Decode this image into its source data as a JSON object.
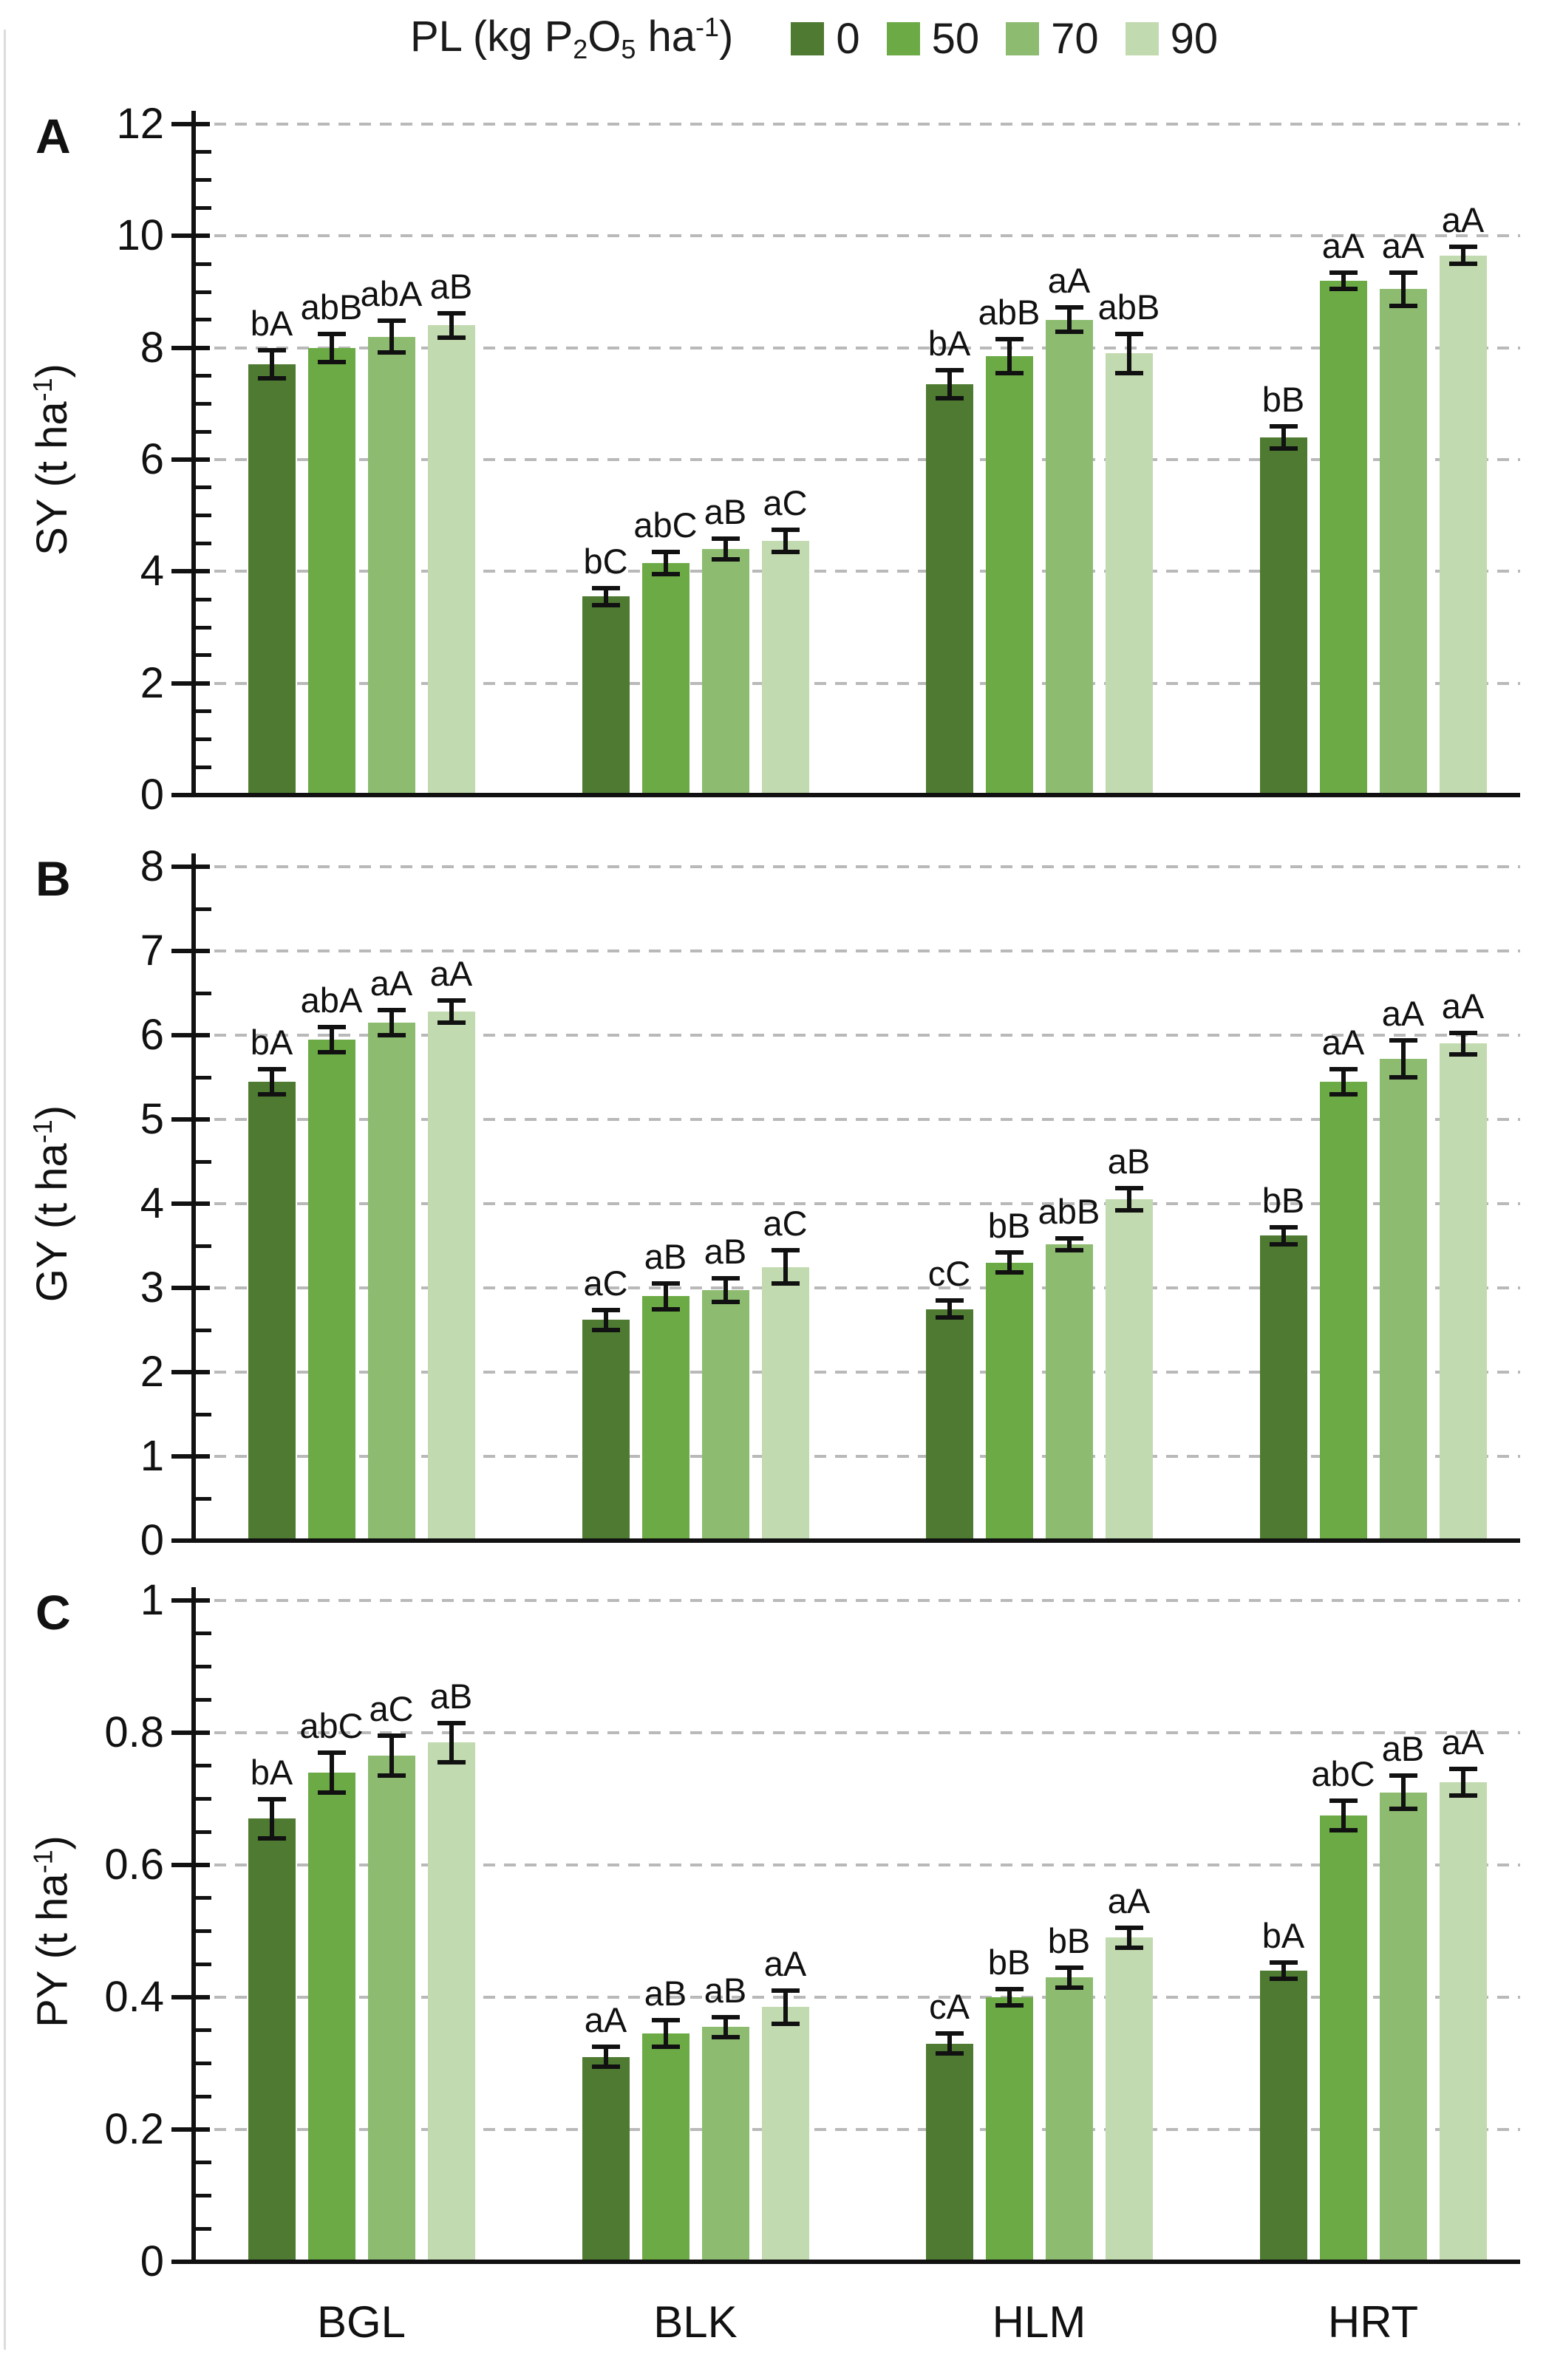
{
  "figure": {
    "legend": {
      "title_text": "PL (kg P2O5 ha-1)",
      "title_segments": [
        {
          "t": "PL (kg P"
        },
        {
          "sub": "2"
        },
        {
          "t": "O"
        },
        {
          "sub": "5"
        },
        {
          "t": " ha"
        },
        {
          "sup": "-1"
        },
        {
          "t": ")"
        }
      ],
      "position": "top",
      "series": [
        {
          "label": "0",
          "color": "#4e7b31"
        },
        {
          "label": "50",
          "color": "#6caa45"
        },
        {
          "label": "70",
          "color": "#8dbb70"
        },
        {
          "label": "90",
          "color": "#c2daaf"
        }
      ]
    },
    "categories": [
      "BGL",
      "BLK",
      "HLM",
      "HRT"
    ],
    "axis_color": "#111111",
    "gridline_color": "#b9b9b9",
    "grid": "horizontal-dashed"
  },
  "chart_data": [
    {
      "type": "bar",
      "panel_label": "A",
      "ylabel": "SY (t ha-1)",
      "ylabel_segments": [
        {
          "t": "SY (t ha"
        },
        {
          "sup": "-1"
        },
        {
          "t": ")"
        }
      ],
      "xlabel": "",
      "ylim": [
        0,
        12
      ],
      "ytick_step": 2,
      "yminor_step": 0.5,
      "yticks": [
        0,
        2,
        4,
        6,
        8,
        10,
        12
      ],
      "ytick_labels": [
        "0",
        "2",
        "4",
        "6",
        "8",
        "10",
        "12"
      ],
      "categories": [
        "BGL",
        "BLK",
        "HLM",
        "HRT"
      ],
      "series": [
        {
          "name": "0",
          "values": [
            7.7,
            3.55,
            7.35,
            6.4
          ],
          "errors": [
            0.25,
            0.15,
            0.25,
            0.2
          ],
          "sig_labels": [
            "bA",
            "bC",
            "bA",
            "bB"
          ]
        },
        {
          "name": "50",
          "values": [
            8.0,
            4.15,
            7.85,
            9.2
          ],
          "errors": [
            0.25,
            0.2,
            0.3,
            0.15
          ],
          "sig_labels": [
            "abB",
            "abC",
            "abB",
            "aA"
          ]
        },
        {
          "name": "70",
          "values": [
            8.2,
            4.4,
            8.5,
            9.05
          ],
          "errors": [
            0.28,
            0.18,
            0.22,
            0.3
          ],
          "sig_labels": [
            "abA",
            "aB",
            "aA",
            "aA"
          ]
        },
        {
          "name": "90",
          "values": [
            8.4,
            4.55,
            7.9,
            9.65
          ],
          "errors": [
            0.22,
            0.2,
            0.35,
            0.15
          ],
          "sig_labels": [
            "aB",
            "aC",
            "abB",
            "aA"
          ]
        }
      ]
    },
    {
      "type": "bar",
      "panel_label": "B",
      "ylabel": "GY (t ha-1)",
      "ylabel_segments": [
        {
          "t": "GY (t ha"
        },
        {
          "sup": "-1"
        },
        {
          "t": ")"
        }
      ],
      "xlabel": "",
      "ylim": [
        0,
        8
      ],
      "ytick_step": 1,
      "yminor_step": 0.5,
      "yticks": [
        0,
        1,
        2,
        3,
        4,
        5,
        6,
        7,
        8
      ],
      "ytick_labels": [
        "0",
        "1",
        "2",
        "3",
        "4",
        "5",
        "6",
        "7",
        "8"
      ],
      "categories": [
        "BGL",
        "BLK",
        "HLM",
        "HRT"
      ],
      "series": [
        {
          "name": "0",
          "values": [
            5.45,
            2.62,
            2.75,
            3.62
          ],
          "errors": [
            0.15,
            0.12,
            0.1,
            0.1
          ],
          "sig_labels": [
            "bA",
            "aC",
            "cC",
            "bB"
          ]
        },
        {
          "name": "50",
          "values": [
            5.95,
            2.9,
            3.3,
            5.45
          ],
          "errors": [
            0.15,
            0.15,
            0.12,
            0.15
          ],
          "sig_labels": [
            "abA",
            "aB",
            "bB",
            "aA"
          ]
        },
        {
          "name": "70",
          "values": [
            6.15,
            2.97,
            3.52,
            5.72
          ],
          "errors": [
            0.15,
            0.14,
            0.07,
            0.22
          ],
          "sig_labels": [
            "aA",
            "aB",
            "abB",
            "aA"
          ]
        },
        {
          "name": "90",
          "values": [
            6.28,
            3.25,
            4.05,
            5.9
          ],
          "errors": [
            0.13,
            0.2,
            0.13,
            0.13
          ],
          "sig_labels": [
            "aA",
            "aC",
            "aB",
            "aA"
          ]
        }
      ]
    },
    {
      "type": "bar",
      "panel_label": "C",
      "ylabel": "PY (t ha-1)",
      "ylabel_segments": [
        {
          "t": "PY (t ha"
        },
        {
          "sup": "-1"
        },
        {
          "t": ")"
        }
      ],
      "xlabel": "",
      "ylim": [
        0,
        1
      ],
      "ytick_step": 0.2,
      "yminor_step": 0.05,
      "yticks": [
        0,
        0.2,
        0.4,
        0.6,
        0.8,
        1
      ],
      "ytick_labels": [
        "0",
        "0.2",
        "0.4",
        "0.6",
        "0.8",
        "1"
      ],
      "categories": [
        "BGL",
        "BLK",
        "HLM",
        "HRT"
      ],
      "series": [
        {
          "name": "0",
          "values": [
            0.67,
            0.31,
            0.33,
            0.44
          ],
          "errors": [
            0.03,
            0.015,
            0.015,
            0.012
          ],
          "sig_labels": [
            "bA",
            "aA",
            "cA",
            "bA"
          ]
        },
        {
          "name": "50",
          "values": [
            0.74,
            0.345,
            0.4,
            0.675
          ],
          "errors": [
            0.03,
            0.02,
            0.012,
            0.022
          ],
          "sig_labels": [
            "abC",
            "aB",
            "bB",
            "abC"
          ]
        },
        {
          "name": "70",
          "values": [
            0.765,
            0.355,
            0.43,
            0.71
          ],
          "errors": [
            0.03,
            0.015,
            0.015,
            0.025
          ],
          "sig_labels": [
            "aC",
            "aB",
            "bB",
            "aB"
          ]
        },
        {
          "name": "90",
          "values": [
            0.785,
            0.385,
            0.49,
            0.725
          ],
          "errors": [
            0.03,
            0.025,
            0.015,
            0.02
          ],
          "sig_labels": [
            "aB",
            "aA",
            "aA",
            "aA"
          ]
        }
      ]
    }
  ]
}
